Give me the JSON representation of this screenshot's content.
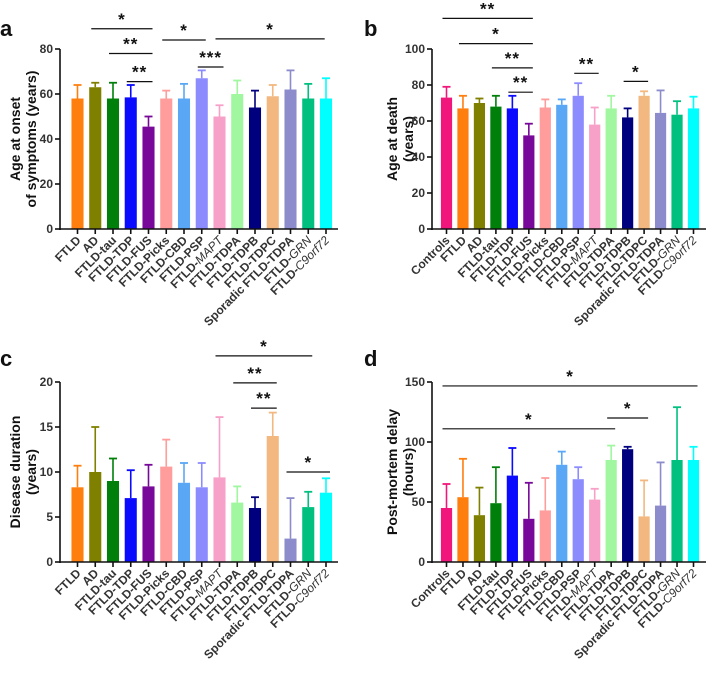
{
  "colors": {
    "Controls": "#f0167c",
    "FTLD": "#ff7f0e",
    "AD": "#808000",
    "FTLD-tau": "#00800a",
    "FTLD-TDP": "#0a0aff",
    "FTLD-FUS": "#78089a",
    "FTLD-Picks": "#ff9c9c",
    "FTLD-CBD": "#5aa8f5",
    "FTLD-PSP": "#8c8cff",
    "FTLD-MAPT": "#f7a0c8",
    "FTLD-TDPA": "#a0f7a0",
    "FTLD-TDPB": "#00007e",
    "FTLD-TDPC": "#f2b880",
    "Sporadic FTLD-TDPA": "#8c8ccc",
    "FTLD-GRN": "#00c080",
    "FTLD-C9orf72": "#00ffff"
  },
  "chart_data": [
    {
      "panel": "a",
      "type": "bar",
      "ylabel": [
        "Age at onset",
        "of symptoms (years)"
      ],
      "ylim": [
        0,
        80
      ],
      "yticks": [
        "0",
        "20",
        "40",
        "60",
        "80"
      ],
      "categories": [
        {
          "key": "FTLD",
          "plain": "FTLD",
          "italic": ""
        },
        {
          "key": "AD",
          "plain": "AD",
          "italic": ""
        },
        {
          "key": "FTLD-tau",
          "plain": "FTLD-tau",
          "italic": ""
        },
        {
          "key": "FTLD-TDP",
          "plain": "FTLD-TDP",
          "italic": ""
        },
        {
          "key": "FTLD-FUS",
          "plain": "FTLD-FUS",
          "italic": ""
        },
        {
          "key": "FTLD-Picks",
          "plain": "FTLD-Picks",
          "italic": ""
        },
        {
          "key": "FTLD-CBD",
          "plain": "FTLD-CBD",
          "italic": ""
        },
        {
          "key": "FTLD-PSP",
          "plain": "FTLD-PSP",
          "italic": ""
        },
        {
          "key": "FTLD-MAPT",
          "plain": "FTLD-",
          "italic": "MAPT"
        },
        {
          "key": "FTLD-TDPA",
          "plain": "FTLD-TDPA",
          "italic": ""
        },
        {
          "key": "FTLD-TDPB",
          "plain": "FTLD-TDPB",
          "italic": ""
        },
        {
          "key": "FTLD-TDPC",
          "plain": "FTLD-TDPC",
          "italic": ""
        },
        {
          "key": "Sporadic FTLD-TDPA",
          "plain": "Sporadic FTLD-TDPA",
          "italic": ""
        },
        {
          "key": "FTLD-GRN",
          "plain": "FTLD-",
          "italic": "GRN"
        },
        {
          "key": "FTLD-C9orf72",
          "plain": "FTLD-",
          "italic": "C9orf72"
        }
      ],
      "values": [
        58,
        63,
        58,
        58.5,
        45.5,
        58,
        58,
        67,
        50,
        60,
        54,
        59,
        62,
        58,
        58
      ],
      "error_upper": [
        64,
        65,
        65,
        64,
        50,
        61.5,
        64.5,
        70.5,
        55,
        66,
        61.5,
        64,
        70.5,
        64.5,
        67
      ],
      "significance": [
        {
          "from": 1,
          "to": 4,
          "y": 89,
          "label": "*"
        },
        {
          "from": 2,
          "to": 4,
          "y": 78,
          "label": "**"
        },
        {
          "from": 3,
          "to": 4,
          "y": 65.5,
          "label": "**"
        },
        {
          "from": 5,
          "to": 7,
          "y": 84,
          "label": "*"
        },
        {
          "from": 7,
          "to": 8,
          "y": 72,
          "label": "***"
        },
        {
          "from": 8,
          "to": 13.7,
          "y": 84.5,
          "label": "*"
        }
      ]
    },
    {
      "panel": "b",
      "type": "bar",
      "ylabel": [
        "Age at death",
        "(years)"
      ],
      "ylim": [
        0,
        100
      ],
      "yticks": [
        "0",
        "20",
        "40",
        "60",
        "80",
        "100"
      ],
      "categories": [
        {
          "key": "Controls",
          "plain": "Controls",
          "italic": ""
        },
        {
          "key": "FTLD",
          "plain": "FTLD",
          "italic": ""
        },
        {
          "key": "AD",
          "plain": "AD",
          "italic": ""
        },
        {
          "key": "FTLD-tau",
          "plain": "FTLD-tau",
          "italic": ""
        },
        {
          "key": "FTLD-TDP",
          "plain": "FTLD-TDP",
          "italic": ""
        },
        {
          "key": "FTLD-FUS",
          "plain": "FTLD-FUS",
          "italic": ""
        },
        {
          "key": "FTLD-Picks",
          "plain": "FTLD-Picks",
          "italic": ""
        },
        {
          "key": "FTLD-CBD",
          "plain": "FTLD-CBD",
          "italic": ""
        },
        {
          "key": "FTLD-PSP",
          "plain": "FTLD-PSP",
          "italic": ""
        },
        {
          "key": "FTLD-MAPT",
          "plain": "FTLD-",
          "italic": "MAPT"
        },
        {
          "key": "FTLD-TDPA",
          "plain": "FTLD-TDPA",
          "italic": ""
        },
        {
          "key": "FTLD-TDPB",
          "plain": "FTLD-TDPB",
          "italic": ""
        },
        {
          "key": "FTLD-TDPC",
          "plain": "FTLD-TDPC",
          "italic": ""
        },
        {
          "key": "Sporadic FTLD-TDPA",
          "plain": "Sporadic FTLD-TDPA",
          "italic": ""
        },
        {
          "key": "FTLD-GRN",
          "plain": "FTLD-",
          "italic": "GRN"
        },
        {
          "key": "FTLD-C9orf72",
          "plain": "FTLD-",
          "italic": "C9orf72"
        }
      ],
      "values": [
        73,
        67,
        70,
        68,
        67,
        52,
        67.5,
        69,
        74,
        58,
        67,
        62,
        74,
        64.5,
        63.5,
        67
      ],
      "error_upper": [
        79,
        74,
        72.5,
        74,
        74,
        58.5,
        72,
        72,
        81,
        67.5,
        74,
        67,
        76.5,
        77,
        71,
        73.5
      ],
      "significance": [
        {
          "from": 0,
          "to": 5,
          "y": 117,
          "label": "**"
        },
        {
          "from": 1,
          "to": 5,
          "y": 103,
          "label": "*"
        },
        {
          "from": 3,
          "to": 5,
          "y": 89.5,
          "label": "**"
        },
        {
          "from": 4,
          "to": 5,
          "y": 76,
          "label": "**"
        },
        {
          "from": 8,
          "to": 9,
          "y": 86.5,
          "label": "**"
        },
        {
          "from": 11,
          "to": 12,
          "y": 82,
          "label": "*"
        }
      ]
    },
    {
      "panel": "c",
      "type": "bar",
      "ylabel": [
        "Disease duration",
        "(years)"
      ],
      "ylim": [
        0,
        20
      ],
      "yticks": [
        "0",
        "5",
        "10",
        "15",
        "20"
      ],
      "categories": [
        {
          "key": "FTLD",
          "plain": "FTLD",
          "italic": ""
        },
        {
          "key": "AD",
          "plain": "AD",
          "italic": ""
        },
        {
          "key": "FTLD-tau",
          "plain": "FTLD-tau",
          "italic": ""
        },
        {
          "key": "FTLD-TDP",
          "plain": "FTLD-TDP",
          "italic": ""
        },
        {
          "key": "FTLD-FUS",
          "plain": "FTLD-FUS",
          "italic": ""
        },
        {
          "key": "FTLD-Picks",
          "plain": "FTLD-Picks",
          "italic": ""
        },
        {
          "key": "FTLD-CBD",
          "plain": "FTLD-CBD",
          "italic": ""
        },
        {
          "key": "FTLD-PSP",
          "plain": "FTLD-PSP",
          "italic": ""
        },
        {
          "key": "FTLD-MAPT",
          "plain": "FTLD-",
          "italic": "MAPT"
        },
        {
          "key": "FTLD-TDPA",
          "plain": "FTLD-TDPA",
          "italic": ""
        },
        {
          "key": "FTLD-TDPB",
          "plain": "FTLD-TDPB",
          "italic": ""
        },
        {
          "key": "FTLD-TDPC",
          "plain": "FTLD-TDPC",
          "italic": ""
        },
        {
          "key": "Sporadic FTLD-TDPA",
          "plain": "Sporadic FTLD-TDPA",
          "italic": ""
        },
        {
          "key": "FTLD-GRN",
          "plain": "FTLD-",
          "italic": "GRN"
        },
        {
          "key": "FTLD-C9orf72",
          "plain": "FTLD-",
          "italic": "C9orf72"
        }
      ],
      "values": [
        8.3,
        10,
        9,
        7.1,
        8.4,
        10.6,
        8.8,
        8.3,
        9.4,
        6.6,
        6,
        14,
        2.6,
        6.1,
        7.7
      ],
      "error_upper": [
        10.7,
        15,
        11.5,
        10.2,
        10.8,
        13.6,
        11,
        11,
        16.1,
        8.4,
        7.2,
        16.6,
        7.1,
        7.8,
        9.3
      ],
      "significance": [
        {
          "from": 8,
          "to": 13,
          "y": 22.9,
          "label": "*"
        },
        {
          "from": 9,
          "to": 11,
          "y": 19.9,
          "label": "**"
        },
        {
          "from": 10,
          "to": 11,
          "y": 17.1,
          "label": "**"
        },
        {
          "from": 12,
          "to": 14,
          "y": 10,
          "label": "*"
        }
      ]
    },
    {
      "panel": "d",
      "type": "bar",
      "ylabel": [
        "Post-mortem delay",
        "(hours)"
      ],
      "ylim": [
        0,
        150
      ],
      "yticks": [
        "0",
        "50",
        "100",
        "150"
      ],
      "categories": [
        {
          "key": "Controls",
          "plain": "Controls",
          "italic": ""
        },
        {
          "key": "FTLD",
          "plain": "FTLD",
          "italic": ""
        },
        {
          "key": "AD",
          "plain": "AD",
          "italic": ""
        },
        {
          "key": "FTLD-tau",
          "plain": "FTLD-tau",
          "italic": ""
        },
        {
          "key": "FTLD-TDP",
          "plain": "FTLD-TDP",
          "italic": ""
        },
        {
          "key": "FTLD-FUS",
          "plain": "FTLD-FUS",
          "italic": ""
        },
        {
          "key": "FTLD-Picks",
          "plain": "FTLD-Picks",
          "italic": ""
        },
        {
          "key": "FTLD-CBD",
          "plain": "FTLD-CBD",
          "italic": ""
        },
        {
          "key": "FTLD-PSP",
          "plain": "FTLD-PSP",
          "italic": ""
        },
        {
          "key": "FTLD-MAPT",
          "plain": "FTLD-",
          "italic": "MAPT"
        },
        {
          "key": "FTLD-TDPA",
          "plain": "FTLD-TDPA",
          "italic": ""
        },
        {
          "key": "FTLD-TDPB",
          "plain": "FTLD-TDPB",
          "italic": ""
        },
        {
          "key": "FTLD-TDPC",
          "plain": "FTLD-TDPC",
          "italic": ""
        },
        {
          "key": "Sporadic FTLD-TDPA",
          "plain": "Sporadic FTLD-TDPA",
          "italic": ""
        },
        {
          "key": "FTLD-GRN",
          "plain": "FTLD-",
          "italic": "GRN"
        },
        {
          "key": "FTLD-C9orf72",
          "plain": "FTLD-",
          "italic": "C9orf72"
        }
      ],
      "values": [
        45,
        54,
        39,
        49,
        72,
        36,
        43,
        81,
        69,
        52,
        85,
        94,
        38,
        47,
        85,
        85
      ],
      "error_upper": [
        65,
        86,
        62,
        79,
        95,
        66,
        70,
        92,
        79,
        61,
        97,
        96,
        68,
        83,
        129,
        96
      ],
      "significance": [
        {
          "from": 0,
          "to": 15,
          "y": 146.7,
          "label": "*"
        },
        {
          "from": 0,
          "to": 10,
          "y": 111,
          "label": "*"
        },
        {
          "from": 10,
          "to": 12,
          "y": 120,
          "label": "*"
        }
      ]
    }
  ]
}
